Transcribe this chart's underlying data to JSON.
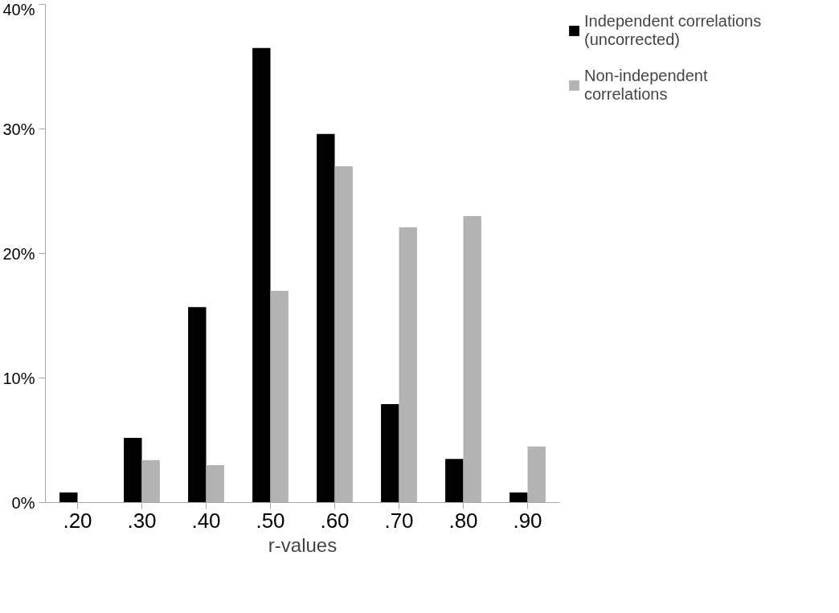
{
  "chart_data": {
    "type": "bar",
    "xlabel": "r-values",
    "categories": [
      ".20",
      ".30",
      ".40",
      ".50",
      ".60",
      ".70",
      ".80",
      ".90"
    ],
    "series": [
      {
        "name": "Independent correlations (uncorrected)",
        "color": "#000000",
        "values": [
          0.8,
          5.2,
          15.7,
          36.5,
          29.6,
          7.9,
          3.5,
          0.8
        ]
      },
      {
        "name": "Non-independent correlations",
        "color": "#b3b3b3",
        "values": [
          0,
          3.4,
          3.0,
          17.0,
          27.0,
          22.1,
          23.0,
          4.5
        ]
      }
    ],
    "ylim": [
      0,
      40
    ],
    "yticks": [
      {
        "value": 0,
        "label": "0%"
      },
      {
        "value": 10,
        "label": "10%"
      },
      {
        "value": 20,
        "label": "20%"
      },
      {
        "value": 30,
        "label": "30%"
      },
      {
        "value": 40,
        "label": "40%"
      }
    ],
    "grid": false,
    "legend": "top right"
  }
}
